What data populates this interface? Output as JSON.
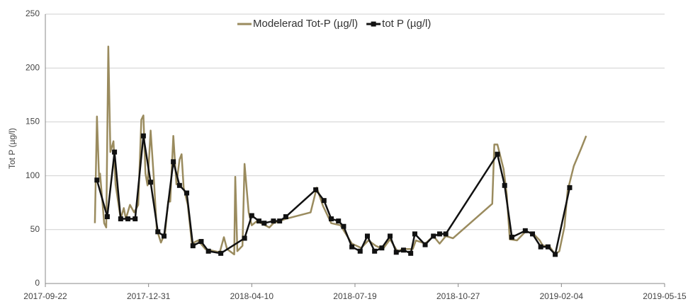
{
  "chart_data": {
    "type": "line",
    "ylabel": "Tot P (µg/l)",
    "xlim": [
      "2017-09-22",
      "2019-05-15"
    ],
    "xticks": [
      "2017-09-22",
      "2017-12-31",
      "2018-04-10",
      "2018-07-19",
      "2018-10-27",
      "2019-02-04",
      "2019-05-15"
    ],
    "ylim": [
      0,
      250
    ],
    "yticks": [
      0,
      50,
      100,
      150,
      200,
      250
    ],
    "grid": true,
    "legend": "top",
    "series": [
      {
        "name": "Modelerad Tot-P (µg/l)",
        "color": "#9a8b5e",
        "marker": false,
        "x": [
          "2017-11-09",
          "2017-11-11",
          "2017-11-13",
          "2017-11-14",
          "2017-11-18",
          "2017-11-20",
          "2017-11-22",
          "2017-11-24",
          "2017-11-27",
          "2017-11-29",
          "2017-12-04",
          "2017-12-07",
          "2017-12-09",
          "2017-12-13",
          "2017-12-17",
          "2017-12-21",
          "2017-12-24",
          "2017-12-26",
          "2017-12-28",
          "2017-12-30",
          "2018-01-02",
          "2018-01-05",
          "2018-01-08",
          "2018-01-12",
          "2018-01-16",
          "2018-01-19",
          "2018-01-21",
          "2018-01-24",
          "2018-01-27",
          "2018-01-30",
          "2018-02-01",
          "2018-02-03",
          "2018-02-07",
          "2018-02-11",
          "2018-02-17",
          "2018-02-24",
          "2018-02-28",
          "2018-03-10",
          "2018-03-14",
          "2018-03-17",
          "2018-03-24",
          "2018-03-25",
          "2018-03-27",
          "2018-04-01",
          "2018-04-03",
          "2018-04-07",
          "2018-04-10",
          "2018-04-15",
          "2018-04-19",
          "2018-04-27",
          "2018-05-01",
          "2018-05-13",
          "2018-06-06",
          "2018-06-12",
          "2018-06-18",
          "2018-06-26",
          "2018-07-05",
          "2018-07-16",
          "2018-07-25",
          "2018-08-01",
          "2018-08-08",
          "2018-08-15",
          "2018-08-22",
          "2018-08-29",
          "2018-09-04",
          "2018-09-13",
          "2018-09-16",
          "2018-09-25",
          "2018-10-03",
          "2018-10-09",
          "2018-10-15",
          "2018-10-22",
          "2018-11-29",
          "2018-12-01",
          "2018-12-04",
          "2018-12-10",
          "2018-12-13",
          "2018-12-16",
          "2018-12-23",
          "2018-12-31",
          "2019-01-07",
          "2019-01-14",
          "2019-01-17",
          "2019-01-23",
          "2019-01-29",
          "2019-02-02",
          "2019-02-07",
          "2019-02-10",
          "2019-02-16",
          "2019-02-23",
          "2019-02-28"
        ],
        "values": [
          56,
          155,
          99,
          102,
          56,
          52,
          220,
          122,
          132,
          92,
          60,
          70,
          60,
          73,
          66,
          73,
          152,
          156,
          102,
          91,
          142,
          99,
          50,
          38,
          47,
          76,
          76,
          137,
          92,
          115,
          120,
          89,
          73,
          37,
          40,
          32,
          31,
          29,
          43,
          32,
          27,
          99,
          30,
          35,
          111,
          66,
          54,
          58,
          56,
          52,
          56,
          60,
          66,
          89,
          72,
          56,
          54,
          37,
          33,
          40,
          35,
          32,
          41,
          30,
          32,
          32,
          40,
          37,
          44,
          37,
          44,
          42,
          74,
          129,
          129,
          106,
          83,
          41,
          40,
          48,
          47,
          40,
          35,
          35,
          27,
          30,
          53,
          86,
          109,
          125,
          137
        ]
      },
      {
        "name": "tot P (µg/l)",
        "color": "#111111",
        "marker": true,
        "x": [
          "2017-11-11",
          "2017-11-21",
          "2017-11-28",
          "2017-12-04",
          "2017-12-11",
          "2017-12-18",
          "2017-12-26",
          "2018-01-02",
          "2018-01-09",
          "2018-01-15",
          "2018-01-24",
          "2018-01-30",
          "2018-02-06",
          "2018-02-12",
          "2018-02-20",
          "2018-02-27",
          "2018-03-11",
          "2018-04-03",
          "2018-04-10",
          "2018-04-17",
          "2018-04-22",
          "2018-05-01",
          "2018-05-07",
          "2018-05-13",
          "2018-06-11",
          "2018-06-19",
          "2018-06-26",
          "2018-07-03",
          "2018-07-08",
          "2018-07-16",
          "2018-07-24",
          "2018-07-31",
          "2018-08-07",
          "2018-08-14",
          "2018-08-22",
          "2018-08-28",
          "2018-09-04",
          "2018-09-11",
          "2018-09-15",
          "2018-09-25",
          "2018-10-03",
          "2018-10-09",
          "2018-10-15",
          "2018-12-04",
          "2018-12-11",
          "2018-12-18",
          "2018-12-31",
          "2019-01-07",
          "2019-01-15",
          "2019-01-22",
          "2019-01-29",
          "2019-02-12"
        ],
        "values": [
          96,
          62,
          122,
          60,
          60,
          60,
          137,
          94,
          48,
          44,
          113,
          91,
          84,
          35,
          39,
          30,
          28,
          42,
          63,
          58,
          56,
          58,
          58,
          62,
          87,
          77,
          60,
          58,
          53,
          34,
          30,
          44,
          30,
          33,
          44,
          29,
          31,
          28,
          46,
          36,
          44,
          46,
          46,
          120,
          91,
          43,
          49,
          46,
          34,
          34,
          27,
          89
        ]
      }
    ]
  }
}
